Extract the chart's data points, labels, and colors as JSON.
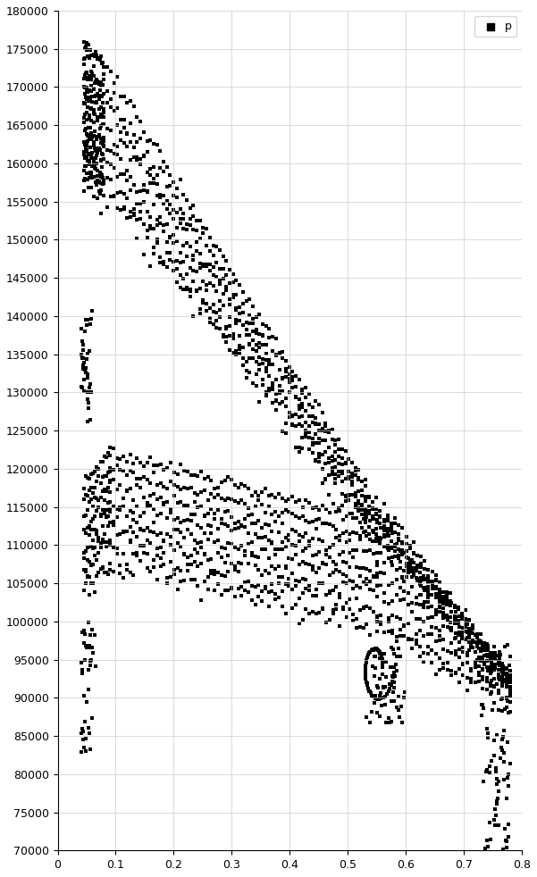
{
  "title": "",
  "xlabel": "",
  "ylabel": "",
  "xlim": [
    0,
    0.8
  ],
  "ylim": [
    70000,
    180000
  ],
  "yticks": [
    70000,
    75000,
    80000,
    85000,
    90000,
    95000,
    100000,
    105000,
    110000,
    115000,
    120000,
    125000,
    130000,
    135000,
    140000,
    145000,
    150000,
    155000,
    160000,
    165000,
    170000,
    175000,
    180000
  ],
  "xticks": [
    0.0,
    0.1,
    0.2,
    0.3,
    0.4,
    0.5,
    0.6,
    0.7,
    0.8
  ],
  "legend_label": "p",
  "marker": "s",
  "markersize": 3,
  "color": "black",
  "background_color": "white",
  "grid_color": "#cccccc",
  "num_upper_lines": 8,
  "num_lower_lines": 8
}
